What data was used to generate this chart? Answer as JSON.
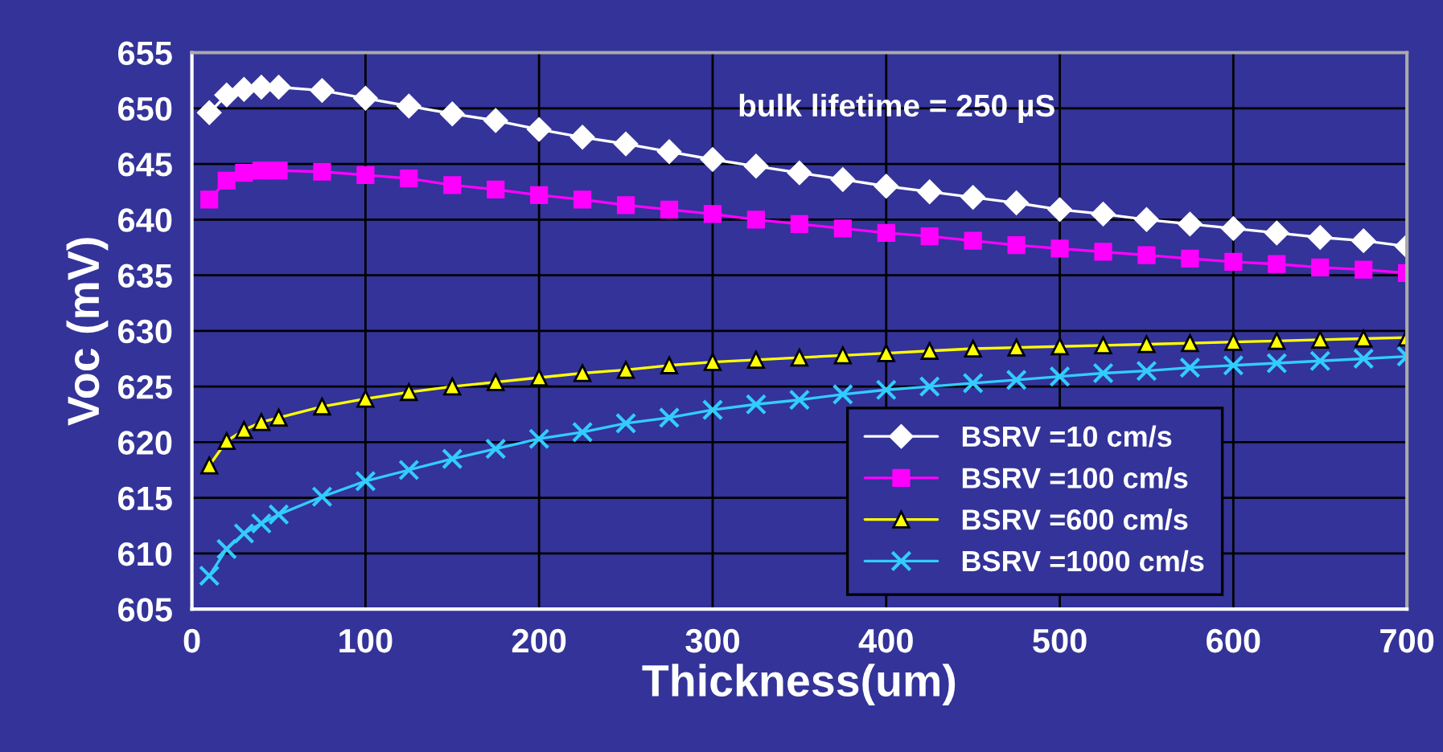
{
  "chart_data": {
    "type": "line",
    "xlabel": "Thickness(um)",
    "ylabel": "Voc (mV)",
    "annotations": [
      "bulk lifetime = 250 µS"
    ],
    "x": [
      10,
      20,
      30,
      40,
      50,
      75,
      100,
      125,
      150,
      175,
      200,
      225,
      250,
      275,
      300,
      325,
      350,
      375,
      400,
      425,
      450,
      475,
      500,
      525,
      550,
      575,
      600,
      625,
      650,
      675,
      700
    ],
    "series": [
      {
        "name": "BSRV =10 cm/s",
        "color": "#ffffff",
        "marker": "diamond",
        "values": [
          649.6,
          651.2,
          651.7,
          651.9,
          651.9,
          651.6,
          650.9,
          650.2,
          649.5,
          648.9,
          648.1,
          647.4,
          646.8,
          646.1,
          645.4,
          644.8,
          644.2,
          643.6,
          643.0,
          642.5,
          642.0,
          641.5,
          640.9,
          640.5,
          640.0,
          639.6,
          639.2,
          638.8,
          638.4,
          638.1,
          637.6
        ]
      },
      {
        "name": "BSRV =100 cm/s",
        "color": "#ff00ff",
        "marker": "square",
        "values": [
          641.8,
          643.5,
          644.2,
          644.4,
          644.4,
          644.3,
          644.0,
          643.7,
          643.1,
          642.7,
          642.2,
          641.8,
          641.3,
          640.9,
          640.5,
          640.0,
          639.6,
          639.2,
          638.8,
          638.5,
          638.1,
          637.7,
          637.4,
          637.1,
          636.8,
          636.5,
          636.2,
          636.0,
          635.7,
          635.5,
          635.2
        ]
      },
      {
        "name": "BSRV =600 cm/s",
        "color": "#ffff00",
        "marker": "triangle",
        "values": [
          617.9,
          620.1,
          621.1,
          621.8,
          622.2,
          623.2,
          623.9,
          624.5,
          625.0,
          625.4,
          625.8,
          626.2,
          626.5,
          626.9,
          627.2,
          627.4,
          627.6,
          627.8,
          628.0,
          628.2,
          628.4,
          628.5,
          628.6,
          628.7,
          628.8,
          628.9,
          629.0,
          629.1,
          629.2,
          629.3,
          629.4
        ]
      },
      {
        "name": "BSRV =1000 cm/s",
        "color": "#33ccff",
        "marker": "cross",
        "values": [
          608.0,
          610.4,
          611.8,
          612.7,
          613.5,
          615.1,
          616.5,
          617.5,
          618.5,
          619.4,
          620.3,
          620.9,
          621.7,
          622.2,
          622.9,
          623.4,
          623.8,
          624.3,
          624.7,
          625.0,
          625.3,
          625.6,
          625.9,
          626.2,
          626.4,
          626.7,
          626.9,
          627.1,
          627.3,
          627.5,
          627.7
        ]
      }
    ],
    "xlim": [
      0,
      700
    ],
    "xticks": [
      0,
      100,
      200,
      300,
      400,
      500,
      600,
      700
    ],
    "ylim": [
      605,
      655
    ],
    "yticks": [
      605,
      610,
      615,
      620,
      625,
      630,
      635,
      640,
      645,
      650,
      655
    ],
    "grid": true,
    "legend": "bottom right",
    "line_style": "solid"
  }
}
